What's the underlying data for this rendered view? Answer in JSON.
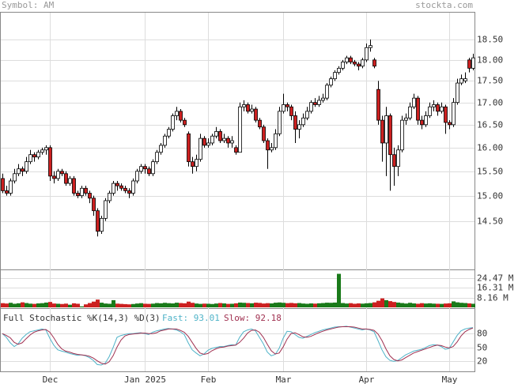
{
  "symbol": "Symbol: AM",
  "source": "stockta.com",
  "chart_data": [
    {
      "type": "candlestick",
      "log": true,
      "grid": true,
      "up_color": "#ffffff",
      "down_color": "#cc2020",
      "ylim": [
        13.6,
        19.2
      ],
      "yticks": [
        {
          "value": 18.5,
          "label": "18.50"
        },
        {
          "value": 18,
          "label": "18.00"
        },
        {
          "value": 17.5,
          "label": "17.50"
        },
        {
          "value": 17,
          "label": "17.00"
        },
        {
          "value": 16.5,
          "label": "16.50"
        },
        {
          "value": 16,
          "label": "16.00"
        },
        {
          "value": 15.5,
          "label": "15.50"
        },
        {
          "value": 15,
          "label": "15.00"
        },
        {
          "value": 14.5,
          "label": "14.50"
        }
      ],
      "categories": [
        null,
        null,
        null,
        null,
        null,
        null,
        null,
        null,
        null,
        null,
        null,
        null,
        "Dec",
        null,
        null,
        null,
        null,
        null,
        null,
        null,
        null,
        null,
        null,
        null,
        null,
        null,
        null,
        null,
        null,
        null,
        null,
        null,
        null,
        null,
        null,
        null,
        "Jan 2025",
        null,
        null,
        null,
        null,
        null,
        null,
        null,
        null,
        null,
        null,
        null,
        null,
        null,
        null,
        null,
        "Feb",
        null,
        null,
        null,
        null,
        null,
        null,
        null,
        null,
        null,
        null,
        null,
        null,
        null,
        null,
        null,
        null,
        null,
        null,
        "Mar",
        null,
        null,
        null,
        null,
        null,
        null,
        null,
        null,
        null,
        null,
        null,
        null,
        null,
        null,
        null,
        null,
        null,
        null,
        null,
        null,
        "Apr",
        null,
        null,
        null,
        null,
        null,
        null,
        null,
        null,
        null,
        null,
        null,
        null,
        null,
        null,
        null,
        null,
        null,
        null,
        null,
        null,
        "May",
        null,
        null,
        null,
        null,
        null,
        null
      ],
      "ohlc": [
        [
          15.35,
          15.45,
          15.05,
          15.1
        ],
        [
          15.1,
          15.2,
          15.0,
          15.05
        ],
        [
          15.05,
          15.35,
          15.0,
          15.3
        ],
        [
          15.3,
          15.55,
          15.25,
          15.45
        ],
        [
          15.45,
          15.65,
          15.4,
          15.55
        ],
        [
          15.55,
          15.6,
          15.4,
          15.5
        ],
        [
          15.5,
          15.8,
          15.45,
          15.7
        ],
        [
          15.7,
          15.95,
          15.65,
          15.85
        ],
        [
          15.85,
          15.9,
          15.7,
          15.8
        ],
        [
          15.8,
          15.95,
          15.75,
          15.9
        ],
        [
          15.9,
          16.0,
          15.85,
          15.95
        ],
        [
          15.95,
          16.05,
          15.85,
          16.0
        ],
        [
          16.0,
          16.05,
          15.3,
          15.4
        ],
        [
          15.4,
          15.5,
          15.25,
          15.35
        ],
        [
          15.35,
          15.55,
          15.3,
          15.5
        ],
        [
          15.5,
          15.55,
          15.4,
          15.45
        ],
        [
          15.45,
          15.5,
          15.2,
          15.25
        ],
        [
          15.25,
          15.4,
          15.2,
          15.35
        ],
        [
          15.35,
          15.4,
          15.0,
          15.05
        ],
        [
          15.05,
          15.1,
          14.95,
          15.0
        ],
        [
          15.0,
          15.2,
          14.95,
          15.15
        ],
        [
          15.15,
          15.2,
          15.0,
          15.05
        ],
        [
          15.05,
          15.1,
          14.85,
          14.95
        ],
        [
          14.95,
          15.0,
          14.6,
          14.7
        ],
        [
          14.7,
          14.75,
          14.2,
          14.3
        ],
        [
          14.3,
          14.6,
          14.25,
          14.55
        ],
        [
          14.55,
          14.95,
          14.5,
          14.9
        ],
        [
          14.9,
          15.1,
          14.85,
          15.05
        ],
        [
          15.05,
          15.3,
          15.0,
          15.25
        ],
        [
          15.25,
          15.3,
          15.1,
          15.2
        ],
        [
          15.2,
          15.25,
          15.1,
          15.15
        ],
        [
          15.15,
          15.2,
          15.05,
          15.1
        ],
        [
          15.1,
          15.15,
          14.95,
          15.05
        ],
        [
          15.05,
          15.35,
          15.0,
          15.3
        ],
        [
          15.3,
          15.55,
          15.25,
          15.5
        ],
        [
          15.5,
          15.65,
          15.45,
          15.6
        ],
        [
          15.6,
          15.65,
          15.45,
          15.55
        ],
        [
          15.55,
          15.6,
          15.4,
          15.45
        ],
        [
          15.45,
          15.75,
          15.4,
          15.7
        ],
        [
          15.7,
          15.95,
          15.65,
          15.9
        ],
        [
          15.9,
          16.1,
          15.85,
          16.05
        ],
        [
          16.05,
          16.3,
          16.0,
          16.25
        ],
        [
          16.25,
          16.45,
          16.2,
          16.4
        ],
        [
          16.4,
          16.75,
          16.35,
          16.7
        ],
        [
          16.7,
          16.9,
          16.6,
          16.8
        ],
        [
          16.8,
          16.85,
          16.55,
          16.6
        ],
        [
          16.6,
          16.65,
          16.45,
          16.5
        ],
        [
          16.3,
          16.35,
          15.6,
          15.7
        ],
        [
          15.7,
          15.8,
          15.45,
          15.6
        ],
        [
          15.6,
          15.85,
          15.5,
          15.75
        ],
        [
          15.75,
          16.3,
          15.7,
          16.2
        ],
        [
          16.2,
          16.25,
          16.0,
          16.05
        ],
        [
          16.05,
          16.2,
          16.0,
          16.1
        ],
        [
          16.1,
          16.3,
          16.05,
          16.25
        ],
        [
          16.25,
          16.45,
          16.2,
          16.35
        ],
        [
          16.35,
          16.4,
          16.1,
          16.15
        ],
        [
          16.15,
          16.3,
          16.1,
          16.2
        ],
        [
          16.2,
          16.25,
          16.0,
          16.1
        ],
        [
          16.1,
          16.25,
          16.0,
          16.15
        ],
        [
          16.0,
          16.05,
          15.85,
          15.9
        ],
        [
          15.9,
          17.0,
          15.9,
          16.9
        ],
        [
          16.9,
          17.05,
          16.8,
          16.95
        ],
        [
          16.95,
          17.0,
          16.75,
          16.8
        ],
        [
          16.8,
          16.95,
          16.75,
          16.85
        ],
        [
          16.85,
          16.9,
          16.55,
          16.6
        ],
        [
          16.6,
          16.65,
          16.4,
          16.45
        ],
        [
          16.45,
          16.5,
          16.1,
          16.15
        ],
        [
          16.15,
          16.2,
          15.55,
          15.95
        ],
        [
          15.95,
          16.1,
          15.9,
          16.0
        ],
        [
          16.0,
          16.4,
          15.95,
          16.3
        ],
        [
          16.3,
          16.9,
          16.25,
          16.8
        ],
        [
          16.8,
          17.2,
          16.75,
          16.95
        ],
        [
          16.95,
          17.0,
          16.8,
          16.9
        ],
        [
          16.9,
          16.95,
          16.6,
          16.7
        ],
        [
          16.7,
          16.8,
          16.1,
          16.4
        ],
        [
          16.4,
          16.6,
          16.2,
          16.5
        ],
        [
          16.5,
          16.75,
          16.45,
          16.65
        ],
        [
          16.65,
          16.9,
          16.6,
          16.8
        ],
        [
          16.8,
          17.05,
          16.75,
          17.0
        ],
        [
          17.0,
          17.1,
          16.9,
          16.95
        ],
        [
          16.95,
          17.15,
          16.9,
          17.05
        ],
        [
          17.05,
          17.2,
          17.0,
          17.1
        ],
        [
          17.1,
          17.45,
          17.05,
          17.4
        ],
        [
          17.4,
          17.6,
          17.35,
          17.55
        ],
        [
          17.55,
          17.75,
          17.5,
          17.7
        ],
        [
          17.7,
          17.85,
          17.65,
          17.8
        ],
        [
          17.8,
          18.0,
          17.75,
          17.95
        ],
        [
          17.95,
          18.1,
          17.9,
          18.05
        ],
        [
          18.05,
          18.1,
          17.9,
          17.95
        ],
        [
          17.95,
          18.0,
          17.85,
          17.9
        ],
        [
          17.9,
          17.95,
          17.75,
          17.85
        ],
        [
          17.85,
          18.05,
          17.8,
          18.0
        ],
        [
          18.0,
          18.4,
          17.95,
          18.3
        ],
        [
          18.3,
          18.5,
          18.2,
          18.35
        ],
        [
          18.0,
          18.05,
          17.8,
          17.85
        ],
        [
          17.3,
          17.5,
          16.5,
          16.6
        ],
        [
          16.6,
          16.7,
          15.7,
          16.1
        ],
        [
          16.1,
          16.9,
          15.4,
          16.7
        ],
        [
          16.7,
          16.75,
          15.1,
          15.85
        ],
        [
          15.85,
          16.0,
          15.2,
          15.6
        ],
        [
          15.6,
          16.05,
          15.4,
          15.95
        ],
        [
          15.95,
          16.7,
          15.9,
          16.6
        ],
        [
          16.6,
          16.75,
          16.5,
          16.65
        ],
        [
          16.65,
          17.0,
          16.6,
          16.9
        ],
        [
          16.9,
          17.2,
          16.85,
          17.1
        ],
        [
          17.1,
          17.15,
          16.5,
          16.6
        ],
        [
          16.6,
          16.7,
          16.4,
          16.5
        ],
        [
          16.5,
          16.8,
          16.45,
          16.7
        ],
        [
          16.7,
          17.0,
          16.65,
          16.9
        ],
        [
          16.9,
          17.05,
          16.8,
          16.95
        ],
        [
          16.95,
          17.0,
          16.7,
          16.8
        ],
        [
          16.8,
          17.0,
          16.75,
          16.9
        ],
        [
          16.9,
          16.95,
          16.3,
          16.55
        ],
        [
          16.55,
          16.6,
          16.4,
          16.5
        ],
        [
          16.5,
          17.1,
          16.45,
          17.0
        ],
        [
          17.0,
          17.55,
          16.95,
          17.45
        ],
        [
          17.45,
          17.65,
          17.4,
          17.55
        ],
        [
          17.5,
          17.7,
          17.45,
          17.55
        ],
        [
          18.0,
          18.05,
          17.7,
          17.8
        ],
        [
          17.8,
          18.15,
          17.75,
          18.05
        ]
      ]
    },
    {
      "type": "bar",
      "up_color": "#1a7a1a",
      "down_color": "#cc2020",
      "ylim": [
        0,
        31
      ],
      "yticks": [
        {
          "value": 24.47,
          "label": "24.47 M"
        },
        {
          "value": 16.31,
          "label": "16.31 M"
        },
        {
          "value": 8.16,
          "label": "8.16 M"
        }
      ],
      "values": [
        3.5,
        3.2,
        3.8,
        3.0,
        3.4,
        4.2,
        3.6,
        3.1,
        2.9,
        3.3,
        3.5,
        4.0,
        4.5,
        3.2,
        3.0,
        2.8,
        3.1,
        2.2,
        3.4,
        3.0,
        0.8,
        2.5,
        3.6,
        4.8,
        6.5,
        3.9,
        3.2,
        3.0,
        6.0,
        3.1,
        2.9,
        2.7,
        2.5,
        2.8,
        3.2,
        3.5,
        3.0,
        2.9,
        3.1,
        3.6,
        3.4,
        3.8,
        3.5,
        3.3,
        3.9,
        3.6,
        3.4,
        4.8,
        3.8,
        3.2,
        2.9,
        3.1,
        3.0,
        2.8,
        3.2,
        3.6,
        3.3,
        2.9,
        3.0,
        3.4,
        4.0,
        3.8,
        3.6,
        3.4,
        3.9,
        3.7,
        3.2,
        3.5,
        3.3,
        3.9,
        4.1,
        3.8,
        3.5,
        3.7,
        3.4,
        3.6,
        3.2,
        3.0,
        3.3,
        3.1,
        3.4,
        3.6,
        3.9,
        3.8,
        4.0,
        28.0,
        3.6,
        3.2,
        3.5,
        3.0,
        3.3,
        3.1,
        3.4,
        3.6,
        4.2,
        5.5,
        7.5,
        6.0,
        5.2,
        4.5,
        4.0,
        3.6,
        3.2,
        3.8,
        3.3,
        3.0,
        3.5,
        3.2,
        3.4,
        3.1,
        3.0,
        2.9,
        3.2,
        3.4,
        5.0,
        4.2,
        3.8,
        3.6,
        3.3,
        3.0
      ]
    },
    {
      "type": "line",
      "title": "Full Stochastic %K(14,3) %D(3)",
      "ylim": [
        0,
        130
      ],
      "yticks": [
        80,
        50,
        20
      ],
      "series": [
        {
          "name": "Fast: 93.01",
          "color": "#4fb3c8",
          "values": [
            80,
            72,
            60,
            52,
            58,
            70,
            78,
            84,
            86,
            88,
            90,
            88,
            70,
            55,
            45,
            42,
            40,
            37,
            35,
            33,
            34,
            32,
            28,
            22,
            13,
            12,
            16,
            30,
            50,
            72,
            76,
            78,
            80,
            80,
            81,
            82,
            80,
            78,
            83,
            86,
            88,
            90,
            91,
            90,
            88,
            84,
            78,
            60,
            45,
            38,
            32,
            36,
            44,
            48,
            50,
            52,
            52,
            54,
            56,
            55,
            72,
            84,
            88,
            90,
            86,
            72,
            58,
            40,
            32,
            35,
            48,
            70,
            85,
            84,
            78,
            72,
            70,
            74,
            78,
            82,
            85,
            88,
            90,
            92,
            94,
            95,
            95,
            96,
            94,
            92,
            90,
            88,
            90,
            88,
            84,
            65,
            45,
            30,
            22,
            20,
            22,
            28,
            34,
            38,
            42,
            44,
            46,
            50,
            54,
            56,
            55,
            52,
            46,
            48,
            62,
            76,
            86,
            90,
            92,
            93.01
          ]
        },
        {
          "name": "Slow: 92.18",
          "color": "#a03050",
          "values": [
            80,
            76,
            71,
            61,
            57,
            60,
            69,
            77,
            83,
            86,
            88,
            89,
            83,
            71,
            57,
            47,
            42,
            40,
            37,
            35,
            34,
            33,
            31,
            27,
            21,
            16,
            14,
            19,
            32,
            51,
            66,
            75,
            78,
            79,
            80,
            81,
            81,
            80,
            80,
            82,
            86,
            88,
            90,
            90,
            90,
            87,
            83,
            74,
            61,
            48,
            38,
            35,
            37,
            43,
            47,
            50,
            51,
            53,
            54,
            55,
            61,
            70,
            81,
            87,
            88,
            83,
            72,
            57,
            43,
            36,
            38,
            51,
            68,
            80,
            82,
            78,
            73,
            72,
            74,
            78,
            82,
            85,
            88,
            90,
            92,
            94,
            95,
            95,
            95,
            94,
            92,
            90,
            90,
            89,
            87,
            79,
            65,
            47,
            32,
            24,
            21,
            23,
            28,
            33,
            38,
            41,
            44,
            47,
            50,
            53,
            55,
            54,
            51,
            49,
            52,
            62,
            75,
            84,
            89,
            92.18
          ]
        }
      ]
    }
  ]
}
